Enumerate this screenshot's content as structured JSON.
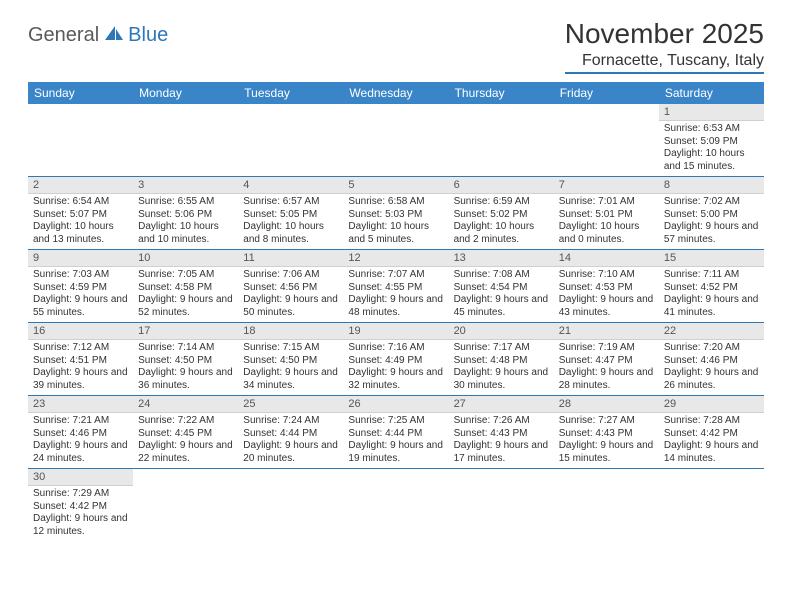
{
  "logo": {
    "text1": "General",
    "text2": "Blue"
  },
  "title": "November 2025",
  "location": "Fornacette, Tuscany, Italy",
  "colors": {
    "header_bg": "#3a85c7",
    "accent": "#2e78b8",
    "daynum_bg": "#e8e8e8",
    "text": "#333333"
  },
  "weekdays": [
    "Sunday",
    "Monday",
    "Tuesday",
    "Wednesday",
    "Thursday",
    "Friday",
    "Saturday"
  ],
  "weeks": [
    [
      null,
      null,
      null,
      null,
      null,
      null,
      {
        "n": "1",
        "sr": "6:53 AM",
        "ss": "5:09 PM",
        "dl": "10 hours and 15 minutes."
      }
    ],
    [
      {
        "n": "2",
        "sr": "6:54 AM",
        "ss": "5:07 PM",
        "dl": "10 hours and 13 minutes."
      },
      {
        "n": "3",
        "sr": "6:55 AM",
        "ss": "5:06 PM",
        "dl": "10 hours and 10 minutes."
      },
      {
        "n": "4",
        "sr": "6:57 AM",
        "ss": "5:05 PM",
        "dl": "10 hours and 8 minutes."
      },
      {
        "n": "5",
        "sr": "6:58 AM",
        "ss": "5:03 PM",
        "dl": "10 hours and 5 minutes."
      },
      {
        "n": "6",
        "sr": "6:59 AM",
        "ss": "5:02 PM",
        "dl": "10 hours and 2 minutes."
      },
      {
        "n": "7",
        "sr": "7:01 AM",
        "ss": "5:01 PM",
        "dl": "10 hours and 0 minutes."
      },
      {
        "n": "8",
        "sr": "7:02 AM",
        "ss": "5:00 PM",
        "dl": "9 hours and 57 minutes."
      }
    ],
    [
      {
        "n": "9",
        "sr": "7:03 AM",
        "ss": "4:59 PM",
        "dl": "9 hours and 55 minutes."
      },
      {
        "n": "10",
        "sr": "7:05 AM",
        "ss": "4:58 PM",
        "dl": "9 hours and 52 minutes."
      },
      {
        "n": "11",
        "sr": "7:06 AM",
        "ss": "4:56 PM",
        "dl": "9 hours and 50 minutes."
      },
      {
        "n": "12",
        "sr": "7:07 AM",
        "ss": "4:55 PM",
        "dl": "9 hours and 48 minutes."
      },
      {
        "n": "13",
        "sr": "7:08 AM",
        "ss": "4:54 PM",
        "dl": "9 hours and 45 minutes."
      },
      {
        "n": "14",
        "sr": "7:10 AM",
        "ss": "4:53 PM",
        "dl": "9 hours and 43 minutes."
      },
      {
        "n": "15",
        "sr": "7:11 AM",
        "ss": "4:52 PM",
        "dl": "9 hours and 41 minutes."
      }
    ],
    [
      {
        "n": "16",
        "sr": "7:12 AM",
        "ss": "4:51 PM",
        "dl": "9 hours and 39 minutes."
      },
      {
        "n": "17",
        "sr": "7:14 AM",
        "ss": "4:50 PM",
        "dl": "9 hours and 36 minutes."
      },
      {
        "n": "18",
        "sr": "7:15 AM",
        "ss": "4:50 PM",
        "dl": "9 hours and 34 minutes."
      },
      {
        "n": "19",
        "sr": "7:16 AM",
        "ss": "4:49 PM",
        "dl": "9 hours and 32 minutes."
      },
      {
        "n": "20",
        "sr": "7:17 AM",
        "ss": "4:48 PM",
        "dl": "9 hours and 30 minutes."
      },
      {
        "n": "21",
        "sr": "7:19 AM",
        "ss": "4:47 PM",
        "dl": "9 hours and 28 minutes."
      },
      {
        "n": "22",
        "sr": "7:20 AM",
        "ss": "4:46 PM",
        "dl": "9 hours and 26 minutes."
      }
    ],
    [
      {
        "n": "23",
        "sr": "7:21 AM",
        "ss": "4:46 PM",
        "dl": "9 hours and 24 minutes."
      },
      {
        "n": "24",
        "sr": "7:22 AM",
        "ss": "4:45 PM",
        "dl": "9 hours and 22 minutes."
      },
      {
        "n": "25",
        "sr": "7:24 AM",
        "ss": "4:44 PM",
        "dl": "9 hours and 20 minutes."
      },
      {
        "n": "26",
        "sr": "7:25 AM",
        "ss": "4:44 PM",
        "dl": "9 hours and 19 minutes."
      },
      {
        "n": "27",
        "sr": "7:26 AM",
        "ss": "4:43 PM",
        "dl": "9 hours and 17 minutes."
      },
      {
        "n": "28",
        "sr": "7:27 AM",
        "ss": "4:43 PM",
        "dl": "9 hours and 15 minutes."
      },
      {
        "n": "29",
        "sr": "7:28 AM",
        "ss": "4:42 PM",
        "dl": "9 hours and 14 minutes."
      }
    ],
    [
      {
        "n": "30",
        "sr": "7:29 AM",
        "ss": "4:42 PM",
        "dl": "9 hours and 12 minutes."
      },
      null,
      null,
      null,
      null,
      null,
      null
    ]
  ],
  "labels": {
    "sunrise": "Sunrise: ",
    "sunset": "Sunset: ",
    "daylight": "Daylight: "
  }
}
